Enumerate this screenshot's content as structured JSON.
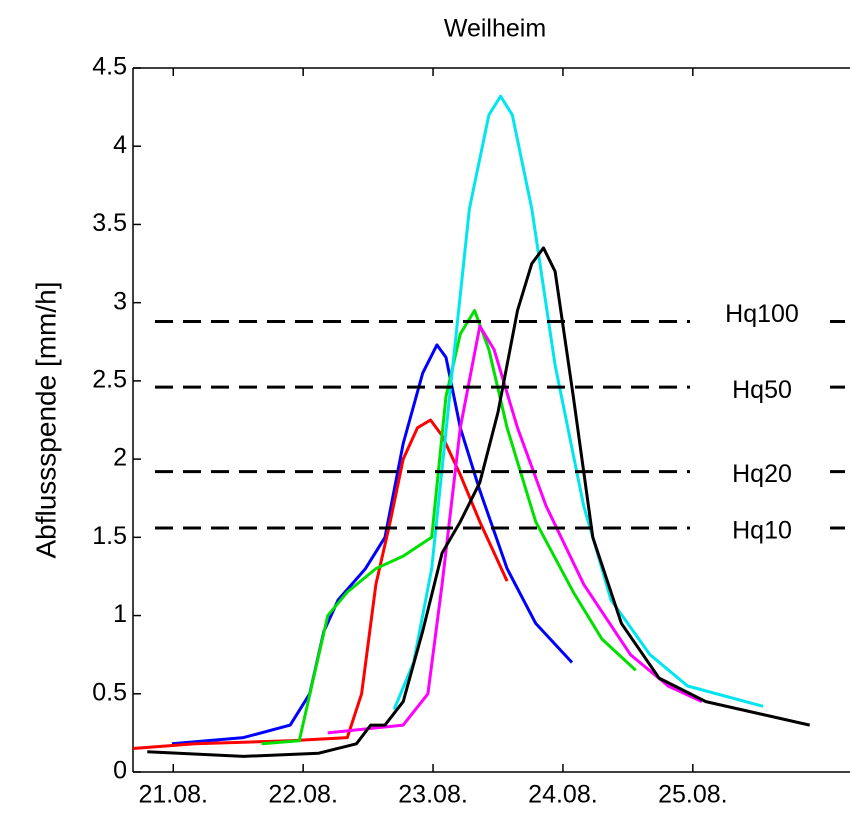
{
  "chart_data": {
    "type": "line",
    "title": "Weilheim",
    "y_label": "Abflussspende [mm/h]",
    "xlim": [
      20.69,
      26.21
    ],
    "ylim": [
      0,
      4.5
    ],
    "xticks": [
      {
        "value": 21,
        "label": "21.08."
      },
      {
        "value": 22,
        "label": "22.08."
      },
      {
        "value": 23,
        "label": "23.08."
      },
      {
        "value": 24,
        "label": "24.08."
      },
      {
        "value": 25,
        "label": "25.08."
      }
    ],
    "yticks": [
      0,
      0.5,
      1,
      1.5,
      2,
      2.5,
      3,
      3.5,
      4,
      4.5
    ],
    "hlines": [
      {
        "label": "Hq100",
        "value": 2.88
      },
      {
        "label": "Hq50",
        "value": 2.46
      },
      {
        "label": "Hq20",
        "value": 1.92
      },
      {
        "label": "Hq10",
        "value": 1.56
      }
    ],
    "series": [
      {
        "color": "#0000ff",
        "x": [
          20.99,
          21.54,
          21.9,
          22.05,
          22.16,
          22.27,
          22.48,
          22.63,
          22.77,
          22.92,
          23.03,
          23.1,
          23.21,
          23.36,
          23.57,
          23.79,
          24.07
        ],
        "values": [
          0.18,
          0.22,
          0.3,
          0.5,
          0.9,
          1.1,
          1.3,
          1.5,
          2.1,
          2.55,
          2.73,
          2.65,
          2.2,
          1.8,
          1.3,
          0.95,
          0.7
        ]
      },
      {
        "color": "#ff0000",
        "x": [
          20.69,
          21.17,
          21.9,
          22.34,
          22.45,
          22.56,
          22.67,
          22.77,
          22.88,
          22.98,
          23.07,
          23.21,
          23.36,
          23.57
        ],
        "values": [
          0.15,
          0.18,
          0.2,
          0.22,
          0.5,
          1.2,
          1.6,
          2.0,
          2.2,
          2.25,
          2.15,
          1.9,
          1.6,
          1.22
        ]
      },
      {
        "color": "#00e000",
        "x": [
          21.68,
          21.97,
          22.08,
          22.19,
          22.34,
          22.56,
          22.77,
          22.99,
          23.1,
          23.21,
          23.32,
          23.43,
          23.57,
          23.79,
          24.08,
          24.3,
          24.56
        ],
        "values": [
          0.18,
          0.2,
          0.6,
          1.0,
          1.15,
          1.3,
          1.38,
          1.5,
          2.4,
          2.8,
          2.95,
          2.7,
          2.2,
          1.6,
          1.15,
          0.85,
          0.65
        ]
      },
      {
        "color": "#ff00ff",
        "x": [
          22.19,
          22.77,
          22.96,
          23.07,
          23.21,
          23.36,
          23.47,
          23.65,
          23.87,
          24.16,
          24.52,
          24.81,
          25.07
        ],
        "values": [
          0.25,
          0.3,
          0.5,
          1.2,
          2.2,
          2.85,
          2.7,
          2.2,
          1.7,
          1.2,
          0.75,
          0.55,
          0.45
        ]
      },
      {
        "color": "#00e5ee",
        "x": [
          22.7,
          22.85,
          22.99,
          23.14,
          23.28,
          23.43,
          23.52,
          23.61,
          23.76,
          23.94,
          24.16,
          24.37,
          24.67,
          24.96,
          25.54
        ],
        "values": [
          0.4,
          0.7,
          1.3,
          2.5,
          3.6,
          4.2,
          4.32,
          4.2,
          3.6,
          2.6,
          1.7,
          1.1,
          0.75,
          0.55,
          0.42
        ]
      },
      {
        "color": "#000000",
        "x": [
          20.8,
          21.54,
          22.12,
          22.41,
          22.52,
          22.63,
          22.77,
          22.92,
          23.07,
          23.21,
          23.36,
          23.5,
          23.65,
          23.76,
          23.85,
          23.94,
          24.08,
          24.23,
          24.45,
          24.74,
          25.1,
          25.9
        ],
        "values": [
          0.13,
          0.1,
          0.12,
          0.18,
          0.3,
          0.3,
          0.45,
          0.9,
          1.4,
          1.6,
          1.85,
          2.3,
          2.95,
          3.25,
          3.35,
          3.2,
          2.4,
          1.5,
          0.95,
          0.6,
          0.45,
          0.3
        ]
      }
    ]
  }
}
